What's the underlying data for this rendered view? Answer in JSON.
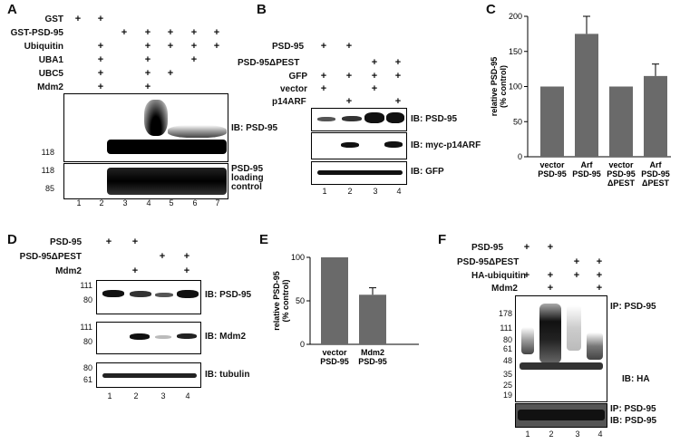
{
  "panels": {
    "A": "A",
    "B": "B",
    "C": "C",
    "D": "D",
    "E": "E",
    "F": "F"
  },
  "A": {
    "rows": [
      "GST",
      "GST-PSD-95",
      "Ubiquitin",
      "UBA1",
      "UBC5",
      "Mdm2"
    ],
    "mw_top": "118",
    "mw_bottom": [
      "118",
      "85"
    ],
    "ib_top": "IB:  PSD-95",
    "ib_bottom": "PSD-95\nloading\ncontrol",
    "lanes": [
      "1",
      "2",
      "3",
      "4",
      "5",
      "6",
      "7"
    ]
  },
  "B": {
    "rows": [
      "PSD-95",
      "PSD-95ΔPEST",
      "GFP",
      "vector",
      "p14ARF"
    ],
    "ib": [
      "IB: PSD-95",
      "IB: myc-p14ARF",
      "IB: GFP"
    ],
    "lanes": [
      "1",
      "2",
      "3",
      "4"
    ]
  },
  "C": {
    "ylabel": "relative PSD-95\n(% control)",
    "yticks": [
      "0",
      "50",
      "100",
      "150",
      "200"
    ],
    "xlabels": [
      "vector\nPSD-95",
      "Arf\nPSD-95",
      "vector\nPSD-95\nΔPEST",
      "Arf\nPSD-95\nΔPEST"
    ]
  },
  "D": {
    "rows": [
      "PSD-95",
      "PSD-95ΔPEST",
      "Mdm2"
    ],
    "ib": [
      "IB: PSD-95",
      "IB: Mdm2",
      "IB: tubulin"
    ],
    "mw1": [
      "111",
      "80"
    ],
    "mw2": [
      "111",
      "80"
    ],
    "mw3": [
      "80",
      "61"
    ],
    "lanes": [
      "1",
      "2",
      "3",
      "4"
    ]
  },
  "E": {
    "ylabel": "relative PSD-95\n(% control)",
    "yticks": [
      "0",
      "50",
      "100"
    ],
    "xlabels": [
      "vector\nPSD-95",
      "Mdm2\nPSD-95"
    ]
  },
  "F": {
    "rows": [
      "PSD-95",
      "PSD-95ΔPEST",
      "HA-ubiquitin",
      "Mdm2"
    ],
    "ip": "IP:  PSD-95",
    "ib": "IB:  HA",
    "mw": [
      "178",
      "111",
      "80",
      "61",
      "48",
      "35",
      "25",
      "19"
    ],
    "ip2": "IP: PSD-95",
    "ib2": "IB: PSD-95",
    "lanes": [
      "1",
      "2",
      "3",
      "4"
    ]
  },
  "chart_data": [
    {
      "type": "bar",
      "panel": "C",
      "categories": [
        "vector PSD-95",
        "Arf PSD-95",
        "vector PSD-95 ΔPEST",
        "Arf PSD-95 ΔPEST"
      ],
      "values": [
        100,
        175,
        100,
        115
      ],
      "errors": [
        0,
        25,
        0,
        17
      ],
      "ylabel": "relative PSD-95 (% control)",
      "ylim": [
        0,
        200
      ],
      "bar_color": "#6a6a6a"
    },
    {
      "type": "bar",
      "panel": "E",
      "categories": [
        "vector PSD-95",
        "Mdm2 PSD-95"
      ],
      "values": [
        100,
        57
      ],
      "errors": [
        0,
        8
      ],
      "ylabel": "relative PSD-95 (% control)",
      "ylim": [
        0,
        100
      ],
      "bar_color": "#6a6a6a"
    }
  ]
}
